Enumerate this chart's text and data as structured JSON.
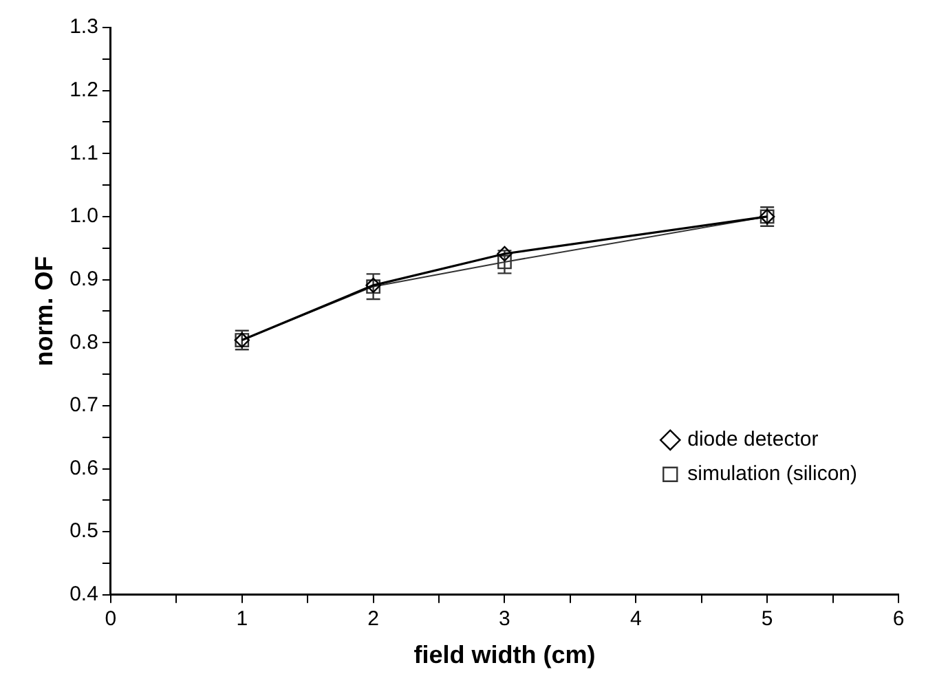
{
  "chart_data": {
    "type": "line",
    "xlabel": "field width (cm)",
    "ylabel": "norm. OF",
    "x": [
      1,
      2,
      3,
      5
    ],
    "series": [
      {
        "name": "diode detector",
        "color": "#000000",
        "values": [
          0.804,
          0.891,
          0.941,
          1.0
        ],
        "marker": "diamond"
      },
      {
        "name": "simulation (silicon)",
        "color": "#333333",
        "values": [
          0.804,
          0.889,
          0.928,
          1.0
        ],
        "marker": "square",
        "errors": [
          0.015,
          0.02,
          0.018,
          0.015
        ]
      }
    ],
    "xlim": [
      0,
      6
    ],
    "xticks": [
      0,
      {
        "value": 0.5,
        "label": null
      },
      1,
      {
        "value": 1.5,
        "label": null
      },
      2,
      {
        "value": 2.5,
        "label": null
      },
      3,
      {
        "value": 3.5,
        "label": null
      },
      4,
      {
        "value": 4.5,
        "label": null
      },
      5,
      {
        "value": 5.5,
        "label": null
      },
      6
    ],
    "ylim": [
      0.4,
      1.3
    ],
    "yticks": [
      {
        "value": 0.4,
        "label": "0.4"
      },
      {
        "value": 0.45,
        "label": null
      },
      {
        "value": 0.5,
        "label": "0.5"
      },
      {
        "value": 0.55,
        "label": null
      },
      {
        "value": 0.6,
        "label": "0.6"
      },
      {
        "value": 0.65,
        "label": null
      },
      {
        "value": 0.7,
        "label": "0.7"
      },
      {
        "value": 0.75,
        "label": null
      },
      {
        "value": 0.8,
        "label": "0.8"
      },
      {
        "value": 0.85,
        "label": null
      },
      {
        "value": 0.9,
        "label": "0.9"
      },
      {
        "value": 0.95,
        "label": null
      },
      {
        "value": 1.0,
        "label": "1.0"
      },
      {
        "value": 1.05,
        "label": null
      },
      {
        "value": 1.1,
        "label": "1.1"
      },
      {
        "value": 1.15,
        "label": null
      },
      {
        "value": 1.2,
        "label": "1.2"
      },
      {
        "value": 1.25,
        "label": null
      },
      {
        "value": 1.3,
        "label": "1.3"
      }
    ],
    "grid": false,
    "legend": "bottom right",
    "line_style": "solid"
  }
}
